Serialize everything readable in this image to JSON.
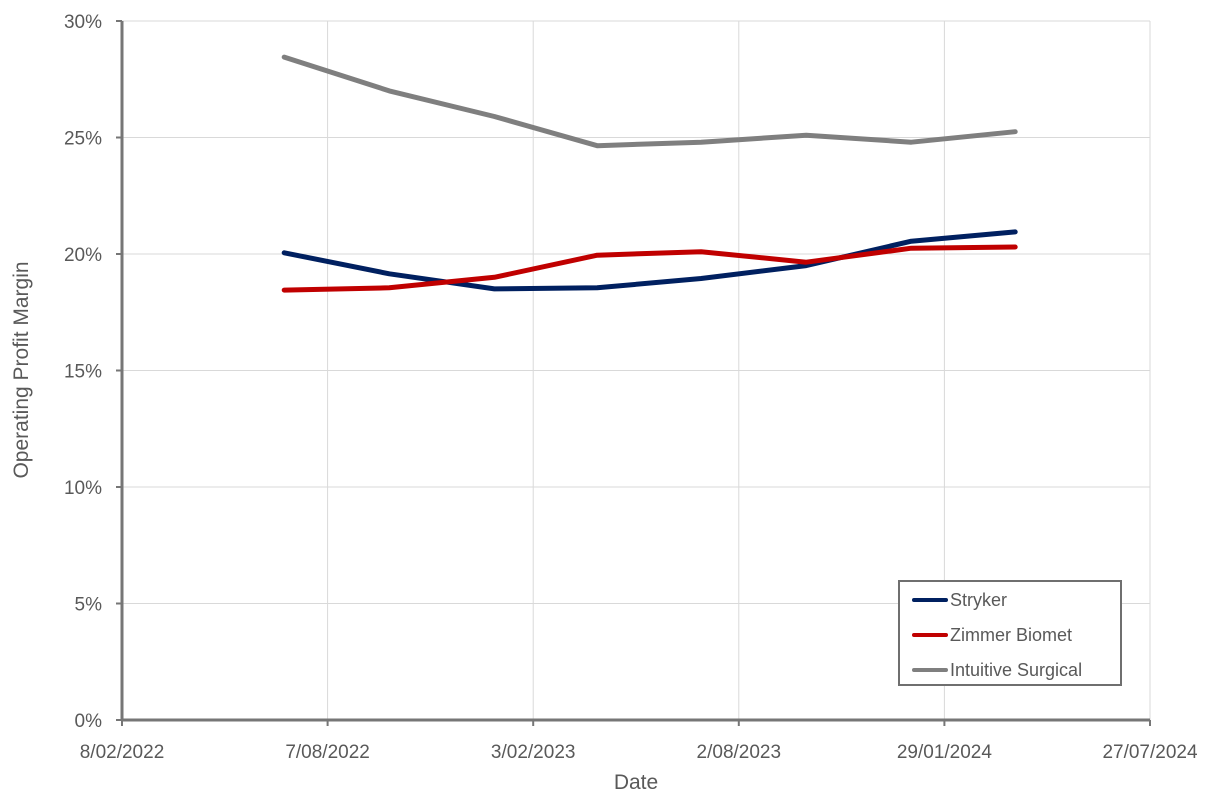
{
  "chart_data": {
    "type": "line",
    "title": "",
    "xlabel": "Date",
    "ylabel": "Operating Profit Margin",
    "ylim": [
      0,
      30
    ],
    "yticks": [
      "0%",
      "5%",
      "10%",
      "15%",
      "20%",
      "25%",
      "30%"
    ],
    "xticks": [
      "8/02/2022",
      "7/08/2022",
      "3/02/2023",
      "2/08/2023",
      "29/01/2024",
      "27/07/2024"
    ],
    "grid": true,
    "legend_position": "lower right",
    "x": [
      "2022-06-30",
      "2022-09-30",
      "2022-12-31",
      "2023-03-31",
      "2023-06-30",
      "2023-09-30",
      "2023-12-31",
      "2024-03-31"
    ],
    "series": [
      {
        "name": "Stryker",
        "color": "#002060",
        "values": [
          20.05,
          19.15,
          18.5,
          18.55,
          18.95,
          19.5,
          20.55,
          20.95
        ]
      },
      {
        "name": "Zimmer Biomet",
        "color": "#c00000",
        "values": [
          18.45,
          18.55,
          19.0,
          19.95,
          20.1,
          19.65,
          20.25,
          20.3
        ]
      },
      {
        "name": "Intuitive Surgical",
        "color": "#7f7f7f",
        "values": [
          28.45,
          27.0,
          25.9,
          24.65,
          24.8,
          25.1,
          24.8,
          25.25
        ]
      }
    ]
  },
  "legend": {
    "items": [
      {
        "label": "Stryker",
        "color": "#002060"
      },
      {
        "label": "Zimmer Biomet",
        "color": "#c00000"
      },
      {
        "label": "Intuitive Surgical",
        "color": "#7f7f7f"
      }
    ]
  }
}
